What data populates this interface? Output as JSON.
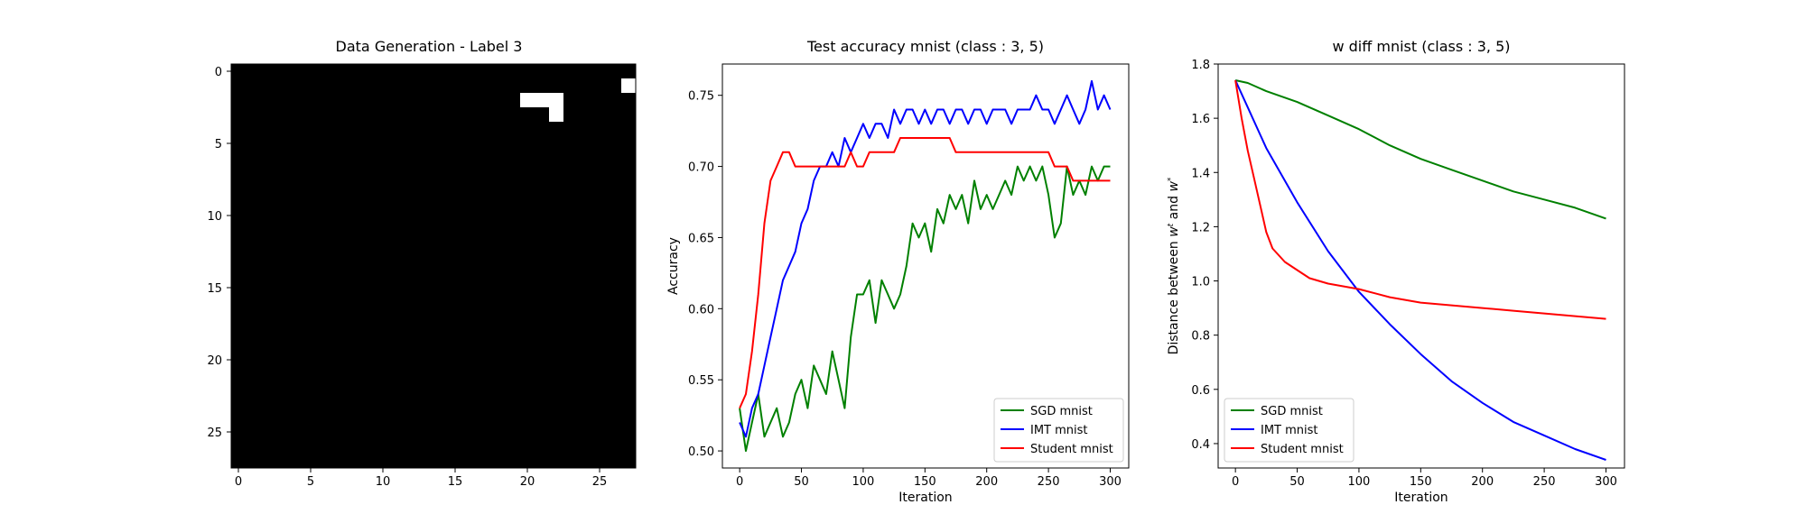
{
  "chart_data": [
    {
      "type": "heatmap",
      "title": "Data Generation - Label 3",
      "xticks": [
        0,
        5,
        10,
        15,
        20,
        25
      ],
      "yticks": [
        0,
        5,
        10,
        15,
        20,
        25
      ],
      "grid_size": [
        28,
        28
      ],
      "colormap": "gray",
      "pixels": [
        "0000000000000000000000000000",
        "000000000000000000000000000f",
        "00000000000000000000fff00000",
        "0000000000000000000000f00000",
        "0000000000000000000000000000",
        "0000000000000000000000000000",
        "0000000000000000000000000000",
        "0000000000000000000000000000",
        "0000000000000000000000000000",
        "0000000000000000000000000000",
        "0000000000000000000000000000",
        "0000000000000000000000000000",
        "0000000000000000000000000000",
        "0000000000000000000000000000",
        "0000000000000000000000000000",
        "0000000000000000000000000000",
        "0000000000000000000000000000",
        "0000000000000000000000000000",
        "0000000000000000000000000000",
        "0000000000000000000000000000",
        "0000000000000000000000000000",
        "0000000000000000000000000000",
        "0000000000000000000000000000",
        "0000000000000000000000000000",
        "0000000000000000000000000000",
        "0000000000000000000000000000",
        "0000000000000000000000000000",
        "0000000000000000000000000000"
      ]
    },
    {
      "type": "line",
      "title": "Test accuracy mnist (class : 3, 5)",
      "xlabel": "Iteration",
      "ylabel": "Accuracy",
      "xlim": [
        -14,
        315
      ],
      "ylim": [
        0.488,
        0.772
      ],
      "xticks": [
        0,
        50,
        100,
        150,
        200,
        250,
        300
      ],
      "yticks": [
        "0.50",
        "0.55",
        "0.60",
        "0.65",
        "0.70",
        "0.75"
      ],
      "legend_position": "lower-right",
      "series": [
        {
          "name": "SGD mnist",
          "color": "#008000",
          "x": [
            0,
            5,
            10,
            15,
            20,
            25,
            30,
            35,
            40,
            45,
            50,
            55,
            60,
            65,
            70,
            75,
            80,
            85,
            90,
            95,
            100,
            105,
            110,
            115,
            120,
            125,
            130,
            135,
            140,
            145,
            150,
            155,
            160,
            165,
            170,
            175,
            180,
            185,
            190,
            195,
            200,
            205,
            210,
            215,
            220,
            225,
            230,
            235,
            240,
            245,
            250,
            255,
            260,
            265,
            270,
            275,
            280,
            285,
            290,
            295,
            300
          ],
          "y": [
            0.53,
            0.5,
            0.52,
            0.54,
            0.51,
            0.52,
            0.53,
            0.51,
            0.52,
            0.54,
            0.55,
            0.53,
            0.56,
            0.55,
            0.54,
            0.57,
            0.55,
            0.53,
            0.58,
            0.61,
            0.61,
            0.62,
            0.59,
            0.62,
            0.61,
            0.6,
            0.61,
            0.63,
            0.66,
            0.65,
            0.66,
            0.64,
            0.67,
            0.66,
            0.68,
            0.67,
            0.68,
            0.66,
            0.69,
            0.67,
            0.68,
            0.67,
            0.68,
            0.69,
            0.68,
            0.7,
            0.69,
            0.7,
            0.69,
            0.7,
            0.68,
            0.65,
            0.66,
            0.7,
            0.68,
            0.69,
            0.68,
            0.7,
            0.69,
            0.7,
            0.7
          ]
        },
        {
          "name": "IMT mnist",
          "color": "#0000ff",
          "x": [
            0,
            5,
            10,
            15,
            20,
            25,
            30,
            35,
            40,
            45,
            50,
            55,
            60,
            65,
            70,
            75,
            80,
            85,
            90,
            95,
            100,
            105,
            110,
            115,
            120,
            125,
            130,
            135,
            140,
            145,
            150,
            155,
            160,
            165,
            170,
            175,
            180,
            185,
            190,
            195,
            200,
            205,
            210,
            215,
            220,
            225,
            230,
            235,
            240,
            245,
            250,
            255,
            260,
            265,
            270,
            275,
            280,
            285,
            290,
            295,
            300
          ],
          "y": [
            0.52,
            0.51,
            0.53,
            0.54,
            0.56,
            0.58,
            0.6,
            0.62,
            0.63,
            0.64,
            0.66,
            0.67,
            0.69,
            0.7,
            0.7,
            0.71,
            0.7,
            0.72,
            0.71,
            0.72,
            0.73,
            0.72,
            0.73,
            0.73,
            0.72,
            0.74,
            0.73,
            0.74,
            0.74,
            0.73,
            0.74,
            0.73,
            0.74,
            0.74,
            0.73,
            0.74,
            0.74,
            0.73,
            0.74,
            0.74,
            0.73,
            0.74,
            0.74,
            0.74,
            0.73,
            0.74,
            0.74,
            0.74,
            0.75,
            0.74,
            0.74,
            0.73,
            0.74,
            0.75,
            0.74,
            0.73,
            0.74,
            0.76,
            0.74,
            0.75,
            0.74
          ]
        },
        {
          "name": "Student mnist",
          "color": "#ff0000",
          "x": [
            0,
            5,
            10,
            15,
            20,
            25,
            30,
            35,
            40,
            45,
            50,
            55,
            60,
            65,
            70,
            75,
            80,
            85,
            90,
            95,
            100,
            105,
            110,
            115,
            120,
            125,
            130,
            135,
            140,
            145,
            150,
            155,
            160,
            165,
            170,
            175,
            180,
            185,
            190,
            195,
            200,
            205,
            210,
            215,
            220,
            225,
            230,
            235,
            240,
            245,
            250,
            255,
            260,
            265,
            270,
            275,
            280,
            285,
            290,
            295,
            300
          ],
          "y": [
            0.53,
            0.54,
            0.57,
            0.61,
            0.66,
            0.69,
            0.7,
            0.71,
            0.71,
            0.7,
            0.7,
            0.7,
            0.7,
            0.7,
            0.7,
            0.7,
            0.7,
            0.7,
            0.71,
            0.7,
            0.7,
            0.71,
            0.71,
            0.71,
            0.71,
            0.71,
            0.72,
            0.72,
            0.72,
            0.72,
            0.72,
            0.72,
            0.72,
            0.72,
            0.72,
            0.71,
            0.71,
            0.71,
            0.71,
            0.71,
            0.71,
            0.71,
            0.71,
            0.71,
            0.71,
            0.71,
            0.71,
            0.71,
            0.71,
            0.71,
            0.71,
            0.7,
            0.7,
            0.7,
            0.69,
            0.69,
            0.69,
            0.69,
            0.69,
            0.69,
            0.69
          ]
        }
      ]
    },
    {
      "type": "line",
      "title": "w diff mnist (class : 3, 5)",
      "xlabel": "Iteration",
      "ylabel": "Distance between w^t and w^*",
      "xlim": [
        -14,
        315
      ],
      "ylim": [
        0.31,
        1.8
      ],
      "xticks": [
        0,
        50,
        100,
        150,
        200,
        250,
        300
      ],
      "yticks": [
        "0.4",
        "0.6",
        "0.8",
        "1.0",
        "1.2",
        "1.4",
        "1.6",
        "1.8"
      ],
      "legend_position": "lower-left",
      "series": [
        {
          "name": "SGD mnist",
          "color": "#008000",
          "x": [
            0,
            10,
            25,
            50,
            75,
            100,
            125,
            150,
            175,
            200,
            225,
            250,
            275,
            300
          ],
          "y": [
            1.74,
            1.73,
            1.7,
            1.66,
            1.61,
            1.56,
            1.5,
            1.45,
            1.41,
            1.37,
            1.33,
            1.3,
            1.27,
            1.23
          ]
        },
        {
          "name": "IMT mnist",
          "color": "#0000ff",
          "x": [
            0,
            10,
            25,
            50,
            75,
            100,
            125,
            150,
            175,
            200,
            225,
            250,
            275,
            300
          ],
          "y": [
            1.74,
            1.64,
            1.49,
            1.29,
            1.11,
            0.96,
            0.84,
            0.73,
            0.63,
            0.55,
            0.48,
            0.43,
            0.38,
            0.34
          ]
        },
        {
          "name": "Student mnist",
          "color": "#ff0000",
          "x": [
            0,
            5,
            10,
            15,
            20,
            25,
            30,
            40,
            50,
            60,
            75,
            100,
            125,
            150,
            175,
            200,
            225,
            250,
            275,
            300
          ],
          "y": [
            1.74,
            1.6,
            1.48,
            1.38,
            1.28,
            1.18,
            1.12,
            1.07,
            1.04,
            1.01,
            0.99,
            0.97,
            0.94,
            0.92,
            0.91,
            0.9,
            0.89,
            0.88,
            0.87,
            0.86
          ]
        }
      ]
    }
  ]
}
